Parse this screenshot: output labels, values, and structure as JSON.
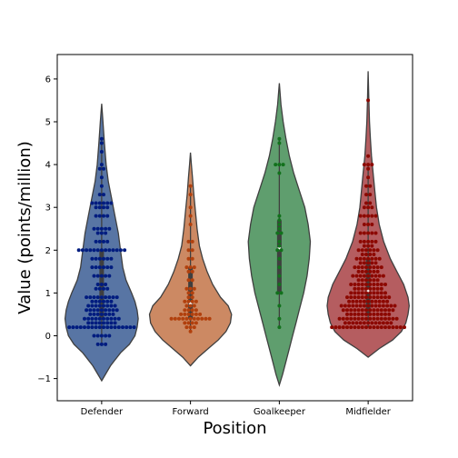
{
  "chart_data": {
    "type": "violin",
    "title": "",
    "xlabel": "Position",
    "ylabel": "Value (points/million)",
    "ylim": [
      -1.5,
      6.6
    ],
    "yticks": [
      -1,
      0,
      1,
      2,
      3,
      4,
      5,
      6
    ],
    "categories": [
      "Defender",
      "Forward",
      "Goalkeeper",
      "Midfielder"
    ],
    "grid": false,
    "legend": "none",
    "series": [
      {
        "category": "Defender",
        "violin_color": "#5875a4",
        "point_color": "#001c7f",
        "density_y": [
          -1.05,
          -0.7,
          -0.4,
          -0.2,
          0,
          0.2,
          0.4,
          0.6,
          0.8,
          1.0,
          1.3,
          1.6,
          2.0,
          2.4,
          2.8,
          3.2,
          3.6,
          4.0,
          4.5,
          5.0,
          5.42
        ],
        "density_w": [
          0,
          0.08,
          0.17,
          0.25,
          0.3,
          0.32,
          0.33,
          0.32,
          0.3,
          0.27,
          0.22,
          0.19,
          0.17,
          0.15,
          0.12,
          0.09,
          0.06,
          0.04,
          0.025,
          0.012,
          0
        ],
        "box": {
          "q1": 0.4,
          "median": 0.9,
          "q3": 2.0,
          "wmin": -0.2,
          "wmax": 4.6
        },
        "points": [
          {
            "y": -0.2,
            "n": 3
          },
          {
            "y": 0.0,
            "n": 5
          },
          {
            "y": 0.2,
            "n": 18
          },
          {
            "y": 0.3,
            "n": 8
          },
          {
            "y": 0.4,
            "n": 10
          },
          {
            "y": 0.5,
            "n": 7
          },
          {
            "y": 0.6,
            "n": 9
          },
          {
            "y": 0.7,
            "n": 8
          },
          {
            "y": 0.8,
            "n": 6
          },
          {
            "y": 0.9,
            "n": 9
          },
          {
            "y": 1.1,
            "n": 4
          },
          {
            "y": 1.2,
            "n": 3
          },
          {
            "y": 1.4,
            "n": 5
          },
          {
            "y": 1.6,
            "n": 6
          },
          {
            "y": 1.8,
            "n": 6
          },
          {
            "y": 2.0,
            "n": 13
          },
          {
            "y": 2.2,
            "n": 4
          },
          {
            "y": 2.4,
            "n": 3
          },
          {
            "y": 2.5,
            "n": 5
          },
          {
            "y": 2.8,
            "n": 4
          },
          {
            "y": 3.0,
            "n": 4
          },
          {
            "y": 3.1,
            "n": 6
          },
          {
            "y": 3.3,
            "n": 2
          },
          {
            "y": 3.5,
            "n": 1
          },
          {
            "y": 3.7,
            "n": 1
          },
          {
            "y": 3.9,
            "n": 2
          },
          {
            "y": 4.0,
            "n": 1
          },
          {
            "y": 4.3,
            "n": 1
          },
          {
            "y": 4.5,
            "n": 1
          },
          {
            "y": 4.6,
            "n": 1
          }
        ]
      },
      {
        "category": "Forward",
        "violin_color": "#cc8963",
        "point_color": "#b1400d",
        "density_y": [
          -0.7,
          -0.5,
          -0.3,
          -0.1,
          0.1,
          0.3,
          0.5,
          0.7,
          0.9,
          1.2,
          1.5,
          1.8,
          2.1,
          2.5,
          2.9,
          3.3,
          3.7,
          4.0,
          4.28
        ],
        "density_w": [
          0,
          0.07,
          0.16,
          0.25,
          0.32,
          0.36,
          0.37,
          0.34,
          0.27,
          0.2,
          0.15,
          0.11,
          0.08,
          0.06,
          0.045,
          0.03,
          0.018,
          0.008,
          0
        ],
        "box": {
          "q1": 0.4,
          "median": 0.75,
          "q3": 1.6,
          "wmin": 0.1,
          "wmax": 3.5
        },
        "points": [
          {
            "y": 0.1,
            "n": 1
          },
          {
            "y": 0.2,
            "n": 3
          },
          {
            "y": 0.3,
            "n": 4
          },
          {
            "y": 0.4,
            "n": 11
          },
          {
            "y": 0.5,
            "n": 6
          },
          {
            "y": 0.6,
            "n": 4
          },
          {
            "y": 0.7,
            "n": 3
          },
          {
            "y": 0.8,
            "n": 4
          },
          {
            "y": 0.9,
            "n": 2
          },
          {
            "y": 1.0,
            "n": 2
          },
          {
            "y": 1.1,
            "n": 3
          },
          {
            "y": 1.3,
            "n": 2
          },
          {
            "y": 1.5,
            "n": 2
          },
          {
            "y": 1.6,
            "n": 3
          },
          {
            "y": 1.8,
            "n": 2
          },
          {
            "y": 2.0,
            "n": 2
          },
          {
            "y": 2.2,
            "n": 2
          },
          {
            "y": 2.6,
            "n": 1
          },
          {
            "y": 2.8,
            "n": 1
          },
          {
            "y": 3.0,
            "n": 1
          },
          {
            "y": 3.3,
            "n": 1
          },
          {
            "y": 3.5,
            "n": 1
          }
        ]
      },
      {
        "category": "Goalkeeper",
        "violin_color": "#5f9e6e",
        "point_color": "#12711c",
        "density_y": [
          -1.15,
          -0.9,
          -0.6,
          -0.3,
          0,
          0.3,
          0.6,
          1.0,
          1.4,
          1.8,
          2.2,
          2.6,
          3.0,
          3.4,
          3.8,
          4.2,
          4.6,
          5.0,
          5.4,
          5.9
        ],
        "density_w": [
          0,
          0.03,
          0.06,
          0.09,
          0.12,
          0.15,
          0.18,
          0.22,
          0.25,
          0.27,
          0.28,
          0.26,
          0.23,
          0.18,
          0.13,
          0.09,
          0.06,
          0.035,
          0.015,
          0
        ],
        "box": {
          "q1": 1.0,
          "median": 2.05,
          "q3": 2.7,
          "wmin": 0.2,
          "wmax": 4.6
        },
        "points": [
          {
            "y": 0.2,
            "n": 1
          },
          {
            "y": 0.4,
            "n": 1
          },
          {
            "y": 0.7,
            "n": 1
          },
          {
            "y": 1.0,
            "n": 2
          },
          {
            "y": 1.2,
            "n": 1
          },
          {
            "y": 1.4,
            "n": 1
          },
          {
            "y": 1.6,
            "n": 1
          },
          {
            "y": 1.8,
            "n": 1
          },
          {
            "y": 2.0,
            "n": 2
          },
          {
            "y": 2.1,
            "n": 1
          },
          {
            "y": 2.2,
            "n": 1
          },
          {
            "y": 2.4,
            "n": 2
          },
          {
            "y": 2.5,
            "n": 1
          },
          {
            "y": 2.6,
            "n": 1
          },
          {
            "y": 2.7,
            "n": 1
          },
          {
            "y": 2.8,
            "n": 1
          },
          {
            "y": 3.8,
            "n": 1
          },
          {
            "y": 4.0,
            "n": 3
          },
          {
            "y": 4.5,
            "n": 1
          },
          {
            "y": 4.6,
            "n": 1
          }
        ]
      },
      {
        "category": "Midfielder",
        "violin_color": "#b55d60",
        "point_color": "#8c0800",
        "density_y": [
          -0.5,
          -0.3,
          -0.1,
          0.1,
          0.3,
          0.5,
          0.7,
          0.9,
          1.2,
          1.5,
          1.8,
          2.2,
          2.6,
          3.0,
          3.4,
          3.8,
          4.2,
          4.6,
          5.0,
          5.5,
          6.18
        ],
        "density_w": [
          0,
          0.1,
          0.22,
          0.3,
          0.34,
          0.36,
          0.37,
          0.36,
          0.32,
          0.26,
          0.2,
          0.14,
          0.1,
          0.075,
          0.06,
          0.045,
          0.03,
          0.02,
          0.012,
          0.006,
          0
        ],
        "box": {
          "q1": 0.5,
          "median": 1.05,
          "q3": 1.8,
          "wmin": 0.2,
          "wmax": 4.0
        },
        "points": [
          {
            "y": 0.2,
            "n": 20
          },
          {
            "y": 0.3,
            "n": 13
          },
          {
            "y": 0.4,
            "n": 16
          },
          {
            "y": 0.5,
            "n": 12
          },
          {
            "y": 0.6,
            "n": 14
          },
          {
            "y": 0.7,
            "n": 15
          },
          {
            "y": 0.8,
            "n": 11
          },
          {
            "y": 0.9,
            "n": 12
          },
          {
            "y": 1.0,
            "n": 10
          },
          {
            "y": 1.1,
            "n": 8
          },
          {
            "y": 1.2,
            "n": 10
          },
          {
            "y": 1.3,
            "n": 6
          },
          {
            "y": 1.4,
            "n": 9
          },
          {
            "y": 1.5,
            "n": 6
          },
          {
            "y": 1.6,
            "n": 8
          },
          {
            "y": 1.7,
            "n": 5
          },
          {
            "y": 1.8,
            "n": 7
          },
          {
            "y": 1.9,
            "n": 4
          },
          {
            "y": 2.0,
            "n": 6
          },
          {
            "y": 2.1,
            "n": 3
          },
          {
            "y": 2.2,
            "n": 5
          },
          {
            "y": 2.4,
            "n": 5
          },
          {
            "y": 2.6,
            "n": 3
          },
          {
            "y": 2.8,
            "n": 5
          },
          {
            "y": 3.0,
            "n": 3
          },
          {
            "y": 3.1,
            "n": 2
          },
          {
            "y": 3.3,
            "n": 2
          },
          {
            "y": 3.5,
            "n": 2
          },
          {
            "y": 3.7,
            "n": 1
          },
          {
            "y": 3.9,
            "n": 1
          },
          {
            "y": 4.0,
            "n": 3
          },
          {
            "y": 4.2,
            "n": 1
          },
          {
            "y": 5.5,
            "n": 1
          }
        ]
      }
    ]
  }
}
